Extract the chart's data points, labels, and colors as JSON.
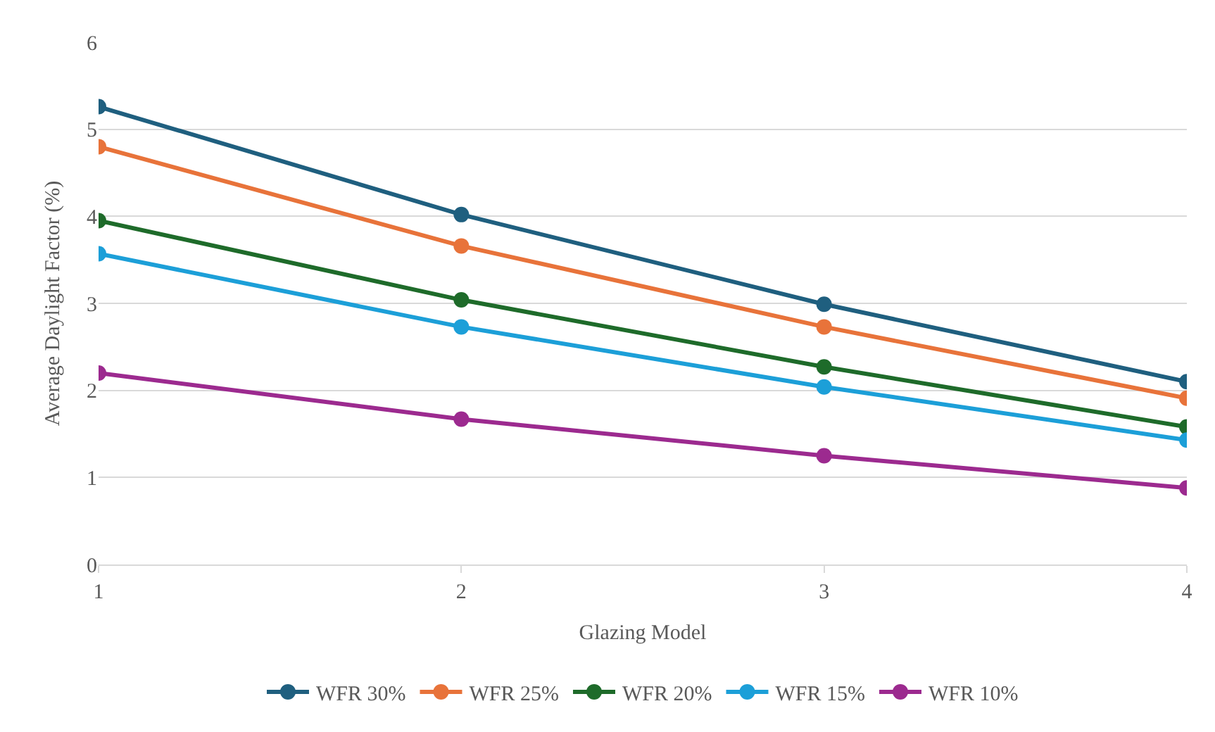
{
  "chart_data": {
    "type": "line",
    "xlabel": "Glazing Model",
    "ylabel": "Average Daylight Factor (%)",
    "x": [
      1,
      2,
      3,
      4
    ],
    "xlim": [
      1,
      4
    ],
    "xticks": [
      1,
      2,
      3,
      4
    ],
    "ylim": [
      0,
      6
    ],
    "yticks": [
      0,
      1,
      2,
      3,
      4,
      5,
      6
    ],
    "grid": "y",
    "legend": "bottom",
    "marker": "circle",
    "line_style": "solid",
    "series": [
      {
        "name": "WFR 30%",
        "color": "#1f5f7f",
        "values": [
          5.26,
          4.02,
          2.99,
          2.1
        ]
      },
      {
        "name": "WFR 25%",
        "color": "#e8733a",
        "values": [
          4.8,
          3.66,
          2.73,
          1.91
        ]
      },
      {
        "name": "WFR 20%",
        "color": "#1e6b2a",
        "values": [
          3.95,
          3.04,
          2.27,
          1.58
        ]
      },
      {
        "name": "WFR 15%",
        "color": "#1c9fd8",
        "values": [
          3.57,
          2.73,
          2.04,
          1.43
        ]
      },
      {
        "name": "WFR 10%",
        "color": "#9c2a8f",
        "values": [
          2.2,
          1.67,
          1.25,
          0.88
        ]
      }
    ]
  }
}
